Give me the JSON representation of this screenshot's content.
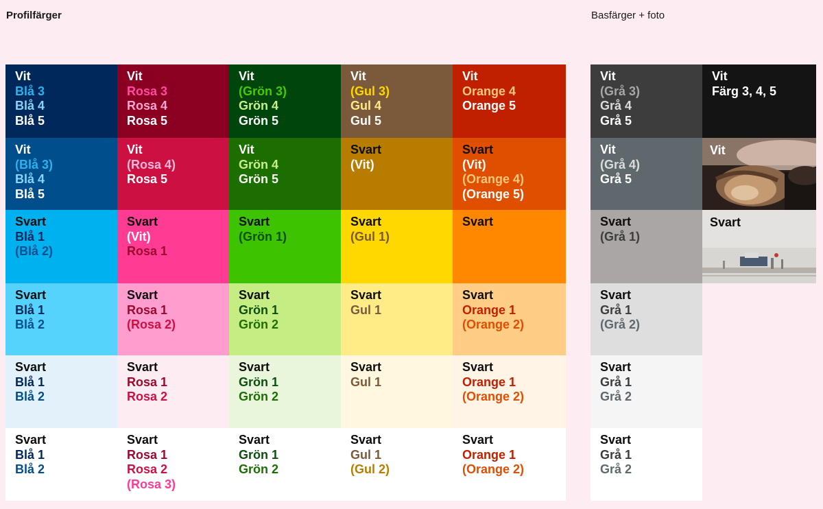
{
  "headings": {
    "left": "Profilfärger",
    "right": "Basfärger + foto"
  },
  "columns": [
    {
      "key": "bla",
      "rows": [
        {
          "bg": "#00285a",
          "lines": [
            [
              "Vit",
              "#ffffff"
            ],
            [
              "Blå 3",
              "#27b4ee"
            ],
            [
              "Blå 4",
              "#87d4f8"
            ],
            [
              "Blå 5",
              "#ffffff"
            ]
          ]
        },
        {
          "bg": "#004e8c",
          "lines": [
            [
              "Vit",
              "#ffffff"
            ],
            [
              "(Blå 3)",
              "#27b4ee"
            ],
            [
              "Blå 4",
              "#87d4f8"
            ],
            [
              "Blå 5",
              "#ffffff"
            ]
          ]
        },
        {
          "bg": "#00b1f0",
          "lines": [
            [
              "Svart",
              "#0d0d0d"
            ],
            [
              "Blå 1",
              "#00285a"
            ],
            [
              "(Blå 2)",
              "#004e8c"
            ]
          ]
        },
        {
          "bg": "#55d3fc",
          "lines": [
            [
              "Svart",
              "#0d0d0d"
            ],
            [
              "Blå 1",
              "#00285a"
            ],
            [
              "Blå 2",
              "#004e8c"
            ]
          ]
        },
        {
          "bg": "#e3f2fa",
          "lines": [
            [
              "Svart",
              "#0d0d0d"
            ],
            [
              "Blå 1",
              "#00285a"
            ],
            [
              "Blå 2",
              "#004e8c"
            ]
          ]
        },
        {
          "bg": "#ffffff",
          "lines": [
            [
              "Svart",
              "#0d0d0d"
            ],
            [
              "Blå 1",
              "#00285a"
            ],
            [
              "Blå 2",
              "#004e8c"
            ]
          ]
        }
      ]
    },
    {
      "key": "rosa",
      "rows": [
        {
          "bg": "#8b0022",
          "lines": [
            [
              "Vit",
              "#ffffff"
            ],
            [
              "Rosa 3",
              "#ff4aa0"
            ],
            [
              "Rosa 4",
              "#ffa6cf"
            ],
            [
              "Rosa 5",
              "#ffffff"
            ]
          ]
        },
        {
          "bg": "#cc1042",
          "lines": [
            [
              "Vit",
              "#ffffff"
            ],
            [
              "(Rosa 4)",
              "#ffb8d8"
            ],
            [
              "Rosa 5",
              "#ffffff"
            ]
          ]
        },
        {
          "bg": "#ff3b94",
          "lines": [
            [
              "Svart",
              "#0d0d0d"
            ],
            [
              "(Vit)",
              "#ffffff"
            ],
            [
              "Rosa 1",
              "#9a0a2e"
            ]
          ]
        },
        {
          "bg": "#ff9dcf",
          "lines": [
            [
              "Svart",
              "#0d0d0d"
            ],
            [
              "Rosa 1",
              "#9a0a2e"
            ],
            [
              "(Rosa 2)",
              "#cc1042"
            ]
          ]
        },
        {
          "bg": "#fdecf1",
          "lines": [
            [
              "Svart",
              "#0d0d0d"
            ],
            [
              "Rosa 1",
              "#9a0a2e"
            ],
            [
              "Rosa 2",
              "#cc1042"
            ]
          ]
        },
        {
          "bg": "#ffffff",
          "lines": [
            [
              "Svart",
              "#0d0d0d"
            ],
            [
              "Rosa 1",
              "#9a0a2e"
            ],
            [
              "Rosa 2",
              "#cc1042"
            ],
            [
              "(Rosa 3)",
              "#ff3b94"
            ]
          ]
        }
      ]
    },
    {
      "key": "gron",
      "rows": [
        {
          "bg": "#00450c",
          "lines": [
            [
              "Vit",
              "#ffffff"
            ],
            [
              "(Grön 3)",
              "#44cc00"
            ],
            [
              "Grön 4",
              "#c7ef8a"
            ],
            [
              "Grön 5",
              "#ffffff"
            ]
          ]
        },
        {
          "bg": "#1c6e00",
          "lines": [
            [
              "Vit",
              "#ffffff"
            ],
            [
              "Grön 4",
              "#c7ef8a"
            ],
            [
              "Grön 5",
              "#ffffff"
            ]
          ]
        },
        {
          "bg": "#3ec300",
          "lines": [
            [
              "Svart",
              "#0d0d0d"
            ],
            [
              "(Grön 1)",
              "#0d4f10"
            ]
          ]
        },
        {
          "bg": "#c6ed84",
          "lines": [
            [
              "Svart",
              "#0d0d0d"
            ],
            [
              "Grön 1",
              "#0d4f10"
            ],
            [
              "Grön 2",
              "#1c6e00"
            ]
          ]
        },
        {
          "bg": "#eaf6dc",
          "lines": [
            [
              "Svart",
              "#0d0d0d"
            ],
            [
              "Grön 1",
              "#0d4f10"
            ],
            [
              "Grön 2",
              "#1c6e00"
            ]
          ]
        },
        {
          "bg": "#ffffff",
          "lines": [
            [
              "Svart",
              "#0d0d0d"
            ],
            [
              "Grön 1",
              "#0d4f10"
            ],
            [
              "Grön 2",
              "#1c6e00"
            ]
          ]
        }
      ]
    },
    {
      "key": "gul",
      "rows": [
        {
          "bg": "#7a5a3a",
          "lines": [
            [
              "Vit",
              "#ffffff"
            ],
            [
              "(Gul 3)",
              "#ffd700"
            ],
            [
              "Gul 4",
              "#ffe88a"
            ],
            [
              "Gul 5",
              "#ffffff"
            ]
          ]
        },
        {
          "bg": "#b87d00",
          "lines": [
            [
              "Svart",
              "#0d0d0d"
            ],
            [
              "(Vit)",
              "#ffffff"
            ]
          ]
        },
        {
          "bg": "#ffd800",
          "lines": [
            [
              "Svart",
              "#0d0d0d"
            ],
            [
              "(Gul 1)",
              "#7a5a3a"
            ]
          ]
        },
        {
          "bg": "#ffec87",
          "lines": [
            [
              "Svart",
              "#0d0d0d"
            ],
            [
              "Gul 1",
              "#7a5a3a"
            ]
          ]
        },
        {
          "bg": "#fff7e0",
          "lines": [
            [
              "Svart",
              "#0d0d0d"
            ],
            [
              "Gul 1",
              "#7a5a3a"
            ]
          ]
        },
        {
          "bg": "#ffffff",
          "lines": [
            [
              "Svart",
              "#0d0d0d"
            ],
            [
              "Gul 1",
              "#7a5a3a"
            ],
            [
              "(Gul 2)",
              "#b87d00"
            ]
          ]
        }
      ]
    },
    {
      "key": "orange",
      "rows": [
        {
          "bg": "#c02000",
          "lines": [
            [
              "Vit",
              "#ffffff"
            ],
            [
              "Orange 4",
              "#ffc77a"
            ],
            [
              "Orange 5",
              "#ffffff"
            ]
          ]
        },
        {
          "bg": "#e04e00",
          "lines": [
            [
              "Svart",
              "#0d0d0d"
            ],
            [
              "(Vit)",
              "#ffffff"
            ],
            [
              "(Orange 4)",
              "#ffc77a"
            ],
            [
              "(Orange 5)",
              "#ffffff"
            ]
          ]
        },
        {
          "bg": "#ff8800",
          "lines": [
            [
              "Svart",
              "#0d0d0d"
            ]
          ]
        },
        {
          "bg": "#ffcd85",
          "lines": [
            [
              "Svart",
              "#0d0d0d"
            ],
            [
              "Orange 1",
              "#c02000"
            ],
            [
              "(Orange 2)",
              "#e04e00"
            ]
          ]
        },
        {
          "bg": "#fff4e6",
          "lines": [
            [
              "Svart",
              "#0d0d0d"
            ],
            [
              "Orange 1",
              "#c02000"
            ],
            [
              "(Orange 2)",
              "#e04e00"
            ]
          ]
        },
        {
          "bg": "#ffffff",
          "lines": [
            [
              "Svart",
              "#0d0d0d"
            ],
            [
              "Orange 1",
              "#c02000"
            ],
            [
              "(Orange 2)",
              "#e04e00"
            ]
          ]
        }
      ]
    },
    {
      "key": "gra",
      "rows": [
        {
          "bg": "#3d3d3d",
          "lines": [
            [
              "Vit",
              "#ffffff"
            ],
            [
              "(Grå 3)",
              "#a8a8a8"
            ],
            [
              "Grå 4",
              "#dcdcdc"
            ],
            [
              "Grå 5",
              "#ffffff"
            ]
          ]
        },
        {
          "bg": "#5f686c",
          "lines": [
            [
              "Vit",
              "#ffffff"
            ],
            [
              "(Grå 4)",
              "#dcdcdc"
            ],
            [
              "Grå 5",
              "#ffffff"
            ]
          ]
        },
        {
          "bg": "#aaa6a6",
          "lines": [
            [
              "Svart",
              "#0d0d0d"
            ],
            [
              "(Grå 1)",
              "#3d3d3d"
            ]
          ]
        },
        {
          "bg": "#dedede",
          "lines": [
            [
              "Svart",
              "#0d0d0d"
            ],
            [
              "Grå 1",
              "#3d3d3d"
            ],
            [
              "(Grå 2)",
              "#5f686c"
            ]
          ]
        },
        {
          "bg": "#f5f5f5",
          "lines": [
            [
              "Svart",
              "#0d0d0d"
            ],
            [
              "Grå 1",
              "#3d3d3d"
            ],
            [
              "Grå 2",
              "#5f686c"
            ]
          ]
        },
        {
          "bg": "#ffffff",
          "lines": [
            [
              "Svart",
              "#0d0d0d"
            ],
            [
              "Grå 1",
              "#3d3d3d"
            ],
            [
              "Grå 2",
              "#5f686c"
            ]
          ]
        }
      ]
    }
  ],
  "photo_column": [
    {
      "bg": "#141414",
      "lines": [
        [
          "Vit",
          "#ffffff"
        ],
        [
          "Färg 3, 4, 5",
          "#ffffff"
        ]
      ]
    },
    {
      "bg": "#6a4a3a",
      "lines": [
        [
          "Vit",
          "#ffffff"
        ]
      ],
      "photo": "dark-hair-photo"
    },
    {
      "bg": "#e6e6e8",
      "lines": [
        [
          "Svart",
          "#0d0d0d"
        ]
      ],
      "photo": "beach-photo"
    }
  ]
}
